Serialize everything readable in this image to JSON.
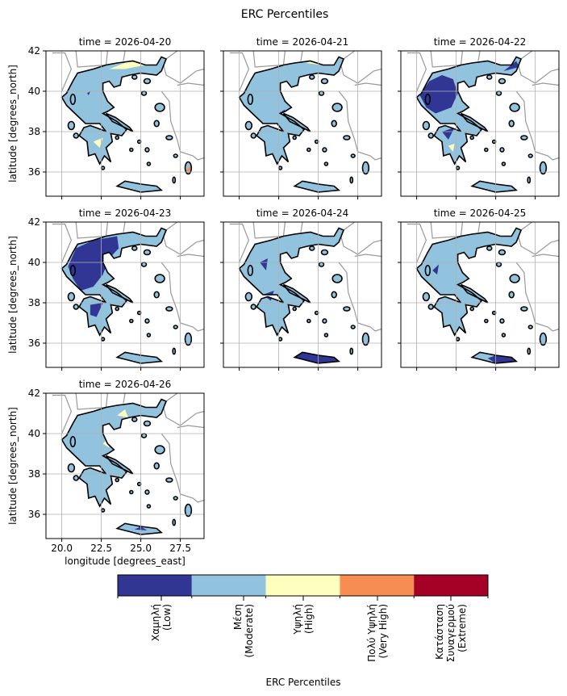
{
  "chart_data": {
    "type": "heatmap",
    "title": "ERC Percentiles",
    "xlabel": "longitude [degrees_east]",
    "ylabel": "latitude [degrees_north]",
    "xlim": [
      19.0,
      29.0
    ],
    "ylim": [
      34.8,
      42.0
    ],
    "xticks": [
      20.0,
      22.5,
      25.0,
      27.5
    ],
    "xtick_labels": [
      "20.0",
      "22.5",
      "25.0",
      "27.5"
    ],
    "yticks": [
      36,
      38,
      40,
      42
    ],
    "ytick_labels": [
      "36",
      "38",
      "40",
      "42"
    ],
    "grid": true,
    "colorbar": {
      "label": "ERC Percentiles",
      "categories": [
        {
          "label": "Χαμηλή\n(Low)",
          "color": "#313695"
        },
        {
          "label": "Μέση\n(Moderate)",
          "color": "#91c3de"
        },
        {
          "label": "Υψηλή\n(High)",
          "color": "#feffbe"
        },
        {
          "label": "Πολύ Υψηλή\n(Very High)",
          "color": "#f88d52"
        },
        {
          "label": "Κατάσταση\nΣυναγερμού\n(Extreme)",
          "color": "#a50026"
        }
      ]
    },
    "panels": [
      {
        "title": "time = 2026-04-20",
        "dominant": 1,
        "patches": [
          {
            "cat": 0,
            "poly": [
              [
                21.6,
                39.9
              ],
              [
                21.8,
                40.0
              ],
              [
                21.7,
                39.8
              ]
            ]
          },
          {
            "cat": 2,
            "poly": [
              [
                23.0,
                41.1
              ],
              [
                24.3,
                41.5
              ],
              [
                25.3,
                41.3
              ],
              [
                24.0,
                41.1
              ]
            ]
          },
          {
            "cat": 3,
            "poly": [
              [
                24.4,
                41.5
              ],
              [
                25.0,
                41.6
              ],
              [
                24.9,
                41.4
              ]
            ]
          },
          {
            "cat": 4,
            "poly": [
              [
                24.6,
                41.6
              ],
              [
                24.9,
                41.6
              ],
              [
                24.8,
                41.5
              ]
            ]
          },
          {
            "cat": 2,
            "poly": [
              [
                22.0,
                37.5
              ],
              [
                22.6,
                37.7
              ],
              [
                22.4,
                37.2
              ]
            ]
          },
          {
            "cat": 3,
            "poly": [
              [
                27.8,
                36.0
              ],
              [
                28.2,
                36.4
              ],
              [
                28.3,
                36.1
              ]
            ]
          }
        ]
      },
      {
        "title": "time = 2026-04-21",
        "dominant": 1,
        "patches": [
          {
            "cat": 2,
            "poly": [
              [
                24.2,
                41.4
              ],
              [
                24.9,
                41.6
              ],
              [
                25.2,
                41.3
              ]
            ]
          },
          {
            "cat": 0,
            "poly": [
              [
                22.5,
                38.9
              ],
              [
                22.9,
                39.1
              ],
              [
                22.8,
                38.8
              ]
            ]
          }
        ]
      },
      {
        "title": "time = 2026-04-22",
        "dominant": 1,
        "patches": [
          {
            "cat": 0,
            "poly": [
              [
                20.2,
                39.8
              ],
              [
                20.8,
                40.5
              ],
              [
                21.6,
                40.8
              ],
              [
                22.3,
                40.6
              ],
              [
                22.6,
                39.9
              ],
              [
                22.2,
                39.2
              ],
              [
                21.2,
                38.9
              ],
              [
                20.6,
                39.2
              ]
            ]
          },
          {
            "cat": 0,
            "poly": [
              [
                21.6,
                38.0
              ],
              [
                22.4,
                38.2
              ],
              [
                22.0,
                37.6
              ]
            ]
          },
          {
            "cat": 0,
            "poly": [
              [
                25.5,
                41.0
              ],
              [
                26.3,
                41.5
              ],
              [
                26.5,
                41.2
              ]
            ]
          },
          {
            "cat": 2,
            "poly": [
              [
                22.0,
                37.3
              ],
              [
                22.4,
                37.4
              ],
              [
                22.3,
                37.0
              ]
            ]
          }
        ]
      },
      {
        "title": "time = 2026-04-23",
        "dominant": 1,
        "patches": [
          {
            "cat": 0,
            "poly": [
              [
                20.4,
                39.8
              ],
              [
                20.9,
                40.7
              ],
              [
                22.0,
                41.1
              ],
              [
                23.5,
                41.3
              ],
              [
                23.6,
                40.7
              ],
              [
                23.0,
                40.2
              ],
              [
                22.6,
                39.4
              ],
              [
                22.0,
                38.8
              ],
              [
                21.2,
                38.6
              ],
              [
                20.7,
                39.2
              ]
            ]
          },
          {
            "cat": 0,
            "poly": [
              [
                21.8,
                37.9
              ],
              [
                22.6,
                38.0
              ],
              [
                22.2,
                37.3
              ],
              [
                21.8,
                37.4
              ]
            ]
          }
        ]
      },
      {
        "title": "time = 2026-04-24",
        "dominant": 1,
        "patches": [
          {
            "cat": 0,
            "poly": [
              [
                21.3,
                40.0
              ],
              [
                21.8,
                40.2
              ],
              [
                21.7,
                39.6
              ]
            ]
          },
          {
            "cat": 0,
            "poly": [
              [
                21.5,
                38.4
              ],
              [
                22.2,
                38.6
              ],
              [
                22.0,
                38.1
              ]
            ]
          },
          {
            "cat": 0,
            "poly": [
              [
                23.5,
                35.3
              ],
              [
                24.0,
                35.55
              ],
              [
                25.0,
                35.4
              ],
              [
                26.0,
                35.3
              ],
              [
                26.3,
                35.1
              ],
              [
                25.0,
                35.0
              ],
              [
                24.0,
                35.2
              ]
            ]
          }
        ]
      },
      {
        "title": "time = 2026-04-25",
        "dominant": 1,
        "patches": [
          {
            "cat": 0,
            "poly": [
              [
                21.0,
                39.6
              ],
              [
                21.4,
                39.9
              ],
              [
                21.3,
                39.4
              ]
            ]
          },
          {
            "cat": 0,
            "poly": [
              [
                24.5,
                35.25
              ],
              [
                25.0,
                35.4
              ],
              [
                26.0,
                35.3
              ],
              [
                26.3,
                35.1
              ],
              [
                25.0,
                35.0
              ]
            ]
          },
          {
            "cat": 3,
            "poly": [
              [
                20.7,
                38.8
              ],
              [
                21.0,
                39.0
              ],
              [
                20.9,
                38.6
              ]
            ]
          },
          {
            "cat": 4,
            "poly": [
              [
                24.5,
                41.5
              ],
              [
                24.8,
                41.6
              ],
              [
                24.7,
                41.4
              ]
            ]
          }
        ]
      },
      {
        "title": "time = 2026-04-26",
        "dominant": 1,
        "patches": [
          {
            "cat": 2,
            "poly": [
              [
                23.5,
                40.9
              ],
              [
                24.0,
                41.2
              ],
              [
                24.2,
                40.8
              ]
            ]
          },
          {
            "cat": 2,
            "poly": [
              [
                22.6,
                39.5
              ],
              [
                23.0,
                39.8
              ],
              [
                23.0,
                39.3
              ]
            ]
          },
          {
            "cat": 3,
            "poly": [
              [
                20.8,
                38.2
              ],
              [
                21.1,
                38.4
              ],
              [
                21.0,
                38.0
              ]
            ]
          },
          {
            "cat": 0,
            "poly": [
              [
                24.6,
                35.25
              ],
              [
                25.0,
                35.4
              ],
              [
                25.4,
                35.2
              ]
            ]
          }
        ]
      }
    ]
  }
}
